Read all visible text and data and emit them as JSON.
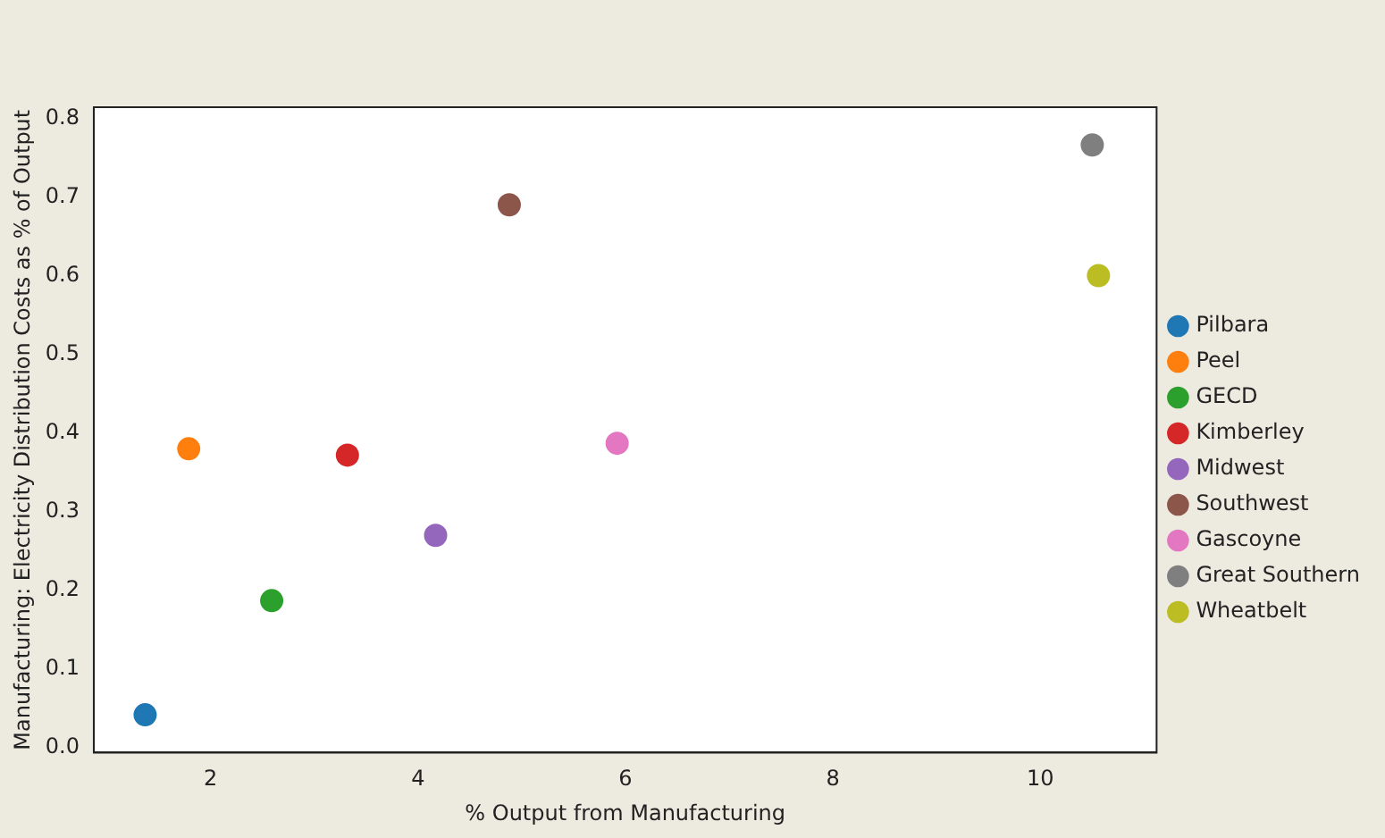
{
  "chart_data": {
    "type": "scatter",
    "xlabel": "% Output from Manufacturing",
    "ylabel": "Manufacturing: Electricity Distribution Costs as % of Output",
    "xlim": [
      0.875,
      11.12
    ],
    "ylim": [
      -0.006,
      0.814
    ],
    "xticks": [
      2,
      4,
      6,
      8,
      10
    ],
    "yticks": [
      {
        "value": 0,
        "label": "0.0"
      },
      0.1,
      0.2,
      0.3,
      0.4,
      0.5,
      0.6,
      0.7,
      0.8
    ],
    "grid": false,
    "legend": "right",
    "marker": "circle",
    "series": [
      {
        "name": "Pilbara",
        "color": "#1f77b4",
        "x": [
          1.37
        ],
        "values": [
          0.042
        ]
      },
      {
        "name": "Peel",
        "color": "#ff7f0e",
        "x": [
          1.79
        ],
        "values": [
          0.38
        ]
      },
      {
        "name": "GECD",
        "color": "#2ca02c",
        "x": [
          2.59
        ],
        "values": [
          0.187
        ]
      },
      {
        "name": "Kimberley",
        "color": "#d62728",
        "x": [
          3.32
        ],
        "values": [
          0.372
        ]
      },
      {
        "name": "Midwest",
        "color": "#9467bd",
        "x": [
          4.17
        ],
        "values": [
          0.27
        ]
      },
      {
        "name": "Southwest",
        "color": "#8c564b",
        "x": [
          4.88
        ],
        "values": [
          0.69
        ]
      },
      {
        "name": "Gascoyne",
        "color": "#e377c2",
        "x": [
          5.92
        ],
        "values": [
          0.387
        ]
      },
      {
        "name": "Great Southern",
        "color": "#7f7f7f",
        "x": [
          10.5
        ],
        "values": [
          0.766
        ]
      },
      {
        "name": "Wheatbelt",
        "color": "#bcbd22",
        "x": [
          10.56
        ],
        "values": [
          0.6
        ]
      }
    ]
  }
}
